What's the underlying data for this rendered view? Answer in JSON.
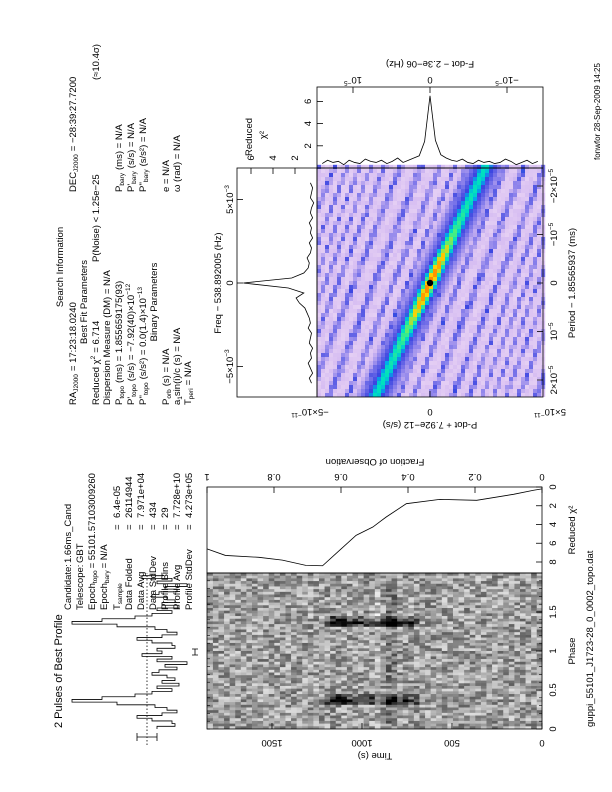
{
  "title": "2 Pulses of Best Profile",
  "footer": {
    "filename": "guppi_55101_J1723-28_0_0002_topo.dat",
    "timestamp": "fonwfor 28-Sep-2009 14:25"
  },
  "candidate": {
    "candidate_label": "Candidate:",
    "candidate_value": "1.66ms_Cand",
    "telescope_label": "Telescope:",
    "telescope_value": "GBT",
    "epoch_topo": {
      "label": "Epoch",
      "sub": "topo",
      "value": "= 55101.57103009260"
    },
    "epoch_bary": {
      "label": "Epoch",
      "sub": "bary",
      "value": "= N/A"
    },
    "rows": [
      {
        "label": "T",
        "sub": "sample",
        "value": "6.4e-05"
      },
      {
        "label": "Data Folded",
        "sub": "",
        "value": "26114944"
      },
      {
        "label": "Data Avg",
        "sub": "",
        "value": "7.971e+04"
      },
      {
        "label": "Data StdDev",
        "sub": "",
        "value": "434"
      },
      {
        "label": "Profile Bins",
        "sub": "",
        "value": "29"
      },
      {
        "label": "Profile Avg",
        "sub": "",
        "value": "7.728e+10"
      },
      {
        "label": "Profile StdDev",
        "sub": "",
        "value": "4.273e+05"
      }
    ],
    "eq": "="
  },
  "search": {
    "title": "Search Information",
    "ra": {
      "label": "RA",
      "sub": "J2000",
      "value": "= 17:23:18.0240"
    },
    "dec": {
      "label": "DEC",
      "sub": "J2000",
      "value": "= −28:39:27.7200"
    },
    "best_fit_title": "Best Fit Parameters",
    "reduced_chi2": {
      "label": "Reduced χ",
      "sup": "2",
      "value": "= 6.714"
    },
    "p_noise": "P(Noise) < 1.25e−25",
    "sigma": "(≈10.4σ)",
    "dm": "Dispersion Measure (DM) = N/A",
    "p_topo": {
      "label": "P",
      "sub": "topo",
      "value": "(ms) = 1.855659175(93)"
    },
    "pd_topo": {
      "label": "P'",
      "sub": "topo",
      "value": "(s/s) = −7.92(40)×10",
      "sup": "−12"
    },
    "pdd_topo": {
      "label": "P''",
      "sub": "topo",
      "value": "(s/s²) = 0.0(1.4)×10",
      "sup": "−13"
    },
    "p_bary": {
      "label": "P",
      "sub": "bary",
      "value": "(ms) = N/A"
    },
    "pd_bary": {
      "label": "P'",
      "sub": "bary",
      "value": "(s/s) = N/A"
    },
    "pdd_bary": {
      "label": "P''",
      "sub": "bary",
      "value": "(s/s²) = N/A"
    },
    "binary_title": "Binary Parameters",
    "p_orb": {
      "label": "P",
      "sub": "orb",
      "value": "(s) = N/A"
    },
    "a1": {
      "label": "a",
      "sub": "1",
      "value": "sin(i)/c (s) = N/A"
    },
    "t_peri": {
      "label": "T",
      "sub": "peri",
      "value": "= N/A"
    },
    "e": "e = N/A",
    "omega": "ω (rad) = N/A"
  },
  "chart_data": [
    {
      "type": "line",
      "title": "2 Pulses of Best Profile",
      "xlabel": "Phase",
      "xlim": [
        0,
        2
      ],
      "x_ticks": [
        "0",
        "0.5",
        "1",
        "1.5"
      ],
      "profile_bins": 29,
      "values": [
        -10,
        -28,
        -25,
        -5,
        10,
        -15,
        -30,
        -20,
        -8,
        30,
        75,
        45,
        12,
        -5,
        -25,
        -10,
        -32,
        -15,
        -28,
        -20,
        -5,
        -12,
        -30,
        -18,
        -40,
        -10,
        -25,
        5,
        -15
      ]
    },
    {
      "type": "heatmap",
      "xlabel": "Phase",
      "ylabel": "Time (s)",
      "xlim": [
        0,
        2
      ],
      "ylim": [
        0,
        1861
      ],
      "y_ticks": [
        "0",
        "500",
        "1000",
        "1500"
      ]
    },
    {
      "type": "line",
      "xlabel": "Reduced χ²",
      "ylabel": "Fraction of Observation",
      "x_ticks": [
        "0",
        "2",
        "4",
        "6",
        "8"
      ],
      "y_ticks": [
        "0",
        "0.2",
        "0.4",
        "0.6",
        "0.8",
        "1"
      ],
      "fraction": [
        0,
        0.025,
        0.085,
        0.195,
        0.305,
        0.405,
        0.465,
        0.505,
        0.555,
        0.615,
        0.655,
        0.705,
        0.775,
        0.845,
        0.945,
        1.0
      ],
      "chi2": [
        0.2,
        0.35,
        0.78,
        1.42,
        1.32,
        1.78,
        3.2,
        4.27,
        5.16,
        7.1,
        8.4,
        8.36,
        7.8,
        7.5,
        7.3,
        6.6
      ]
    },
    {
      "type": "line",
      "xlabel": "Freq − 538.892005 (Hz)",
      "ylabel": "Reduced",
      "ylabel2": "χ²",
      "x_unit": 0.001,
      "x_ticks": [
        {
          "v": -5,
          "label": "−5×10",
          "sup": "−3"
        },
        {
          "v": 0,
          "label": "0",
          "sup": ""
        },
        {
          "v": 5,
          "label": "5×10",
          "sup": "−3"
        }
      ],
      "y_ticks": [
        "2",
        "4",
        "6"
      ],
      "x_start": -6,
      "x_step": 0.3,
      "values": [
        0.5,
        0.7,
        0.4,
        0.6,
        0.8,
        0.5,
        0.6,
        0.4,
        0.7,
        0.6,
        0.5,
        0.8,
        0.6,
        0.7,
        0.9,
        1.1,
        1.6,
        1.9,
        1.2,
        2.6,
        6.7,
        2.3,
        1.2,
        0.8,
        0.7,
        0.9,
        0.6,
        0.5,
        0.7,
        0.4,
        0.6,
        0.5,
        0.7,
        0.4,
        0.6,
        0.5,
        0.3,
        0.6,
        0.5,
        0.4,
        0.6
      ]
    },
    {
      "type": "line",
      "xlabel": "F-dot − 2.3e−06 (Hz)",
      "x_unit": 1e-05,
      "x_ticks": [
        {
          "v": 1,
          "label": "10",
          "sup": "−5"
        },
        {
          "v": 0,
          "label": "0",
          "sup": ""
        },
        {
          "v": -1,
          "label": "−10",
          "sup": "−5"
        }
      ],
      "y_ticks": [
        "2",
        "4",
        "6"
      ],
      "x_start": -1.4,
      "x_step": 0.07,
      "values": [
        0.6,
        0.4,
        0.7,
        0.5,
        0.3,
        0.6,
        0.8,
        0.5,
        0.4,
        0.6,
        0.5,
        0.7,
        0.4,
        0.5,
        0.8,
        0.6,
        0.7,
        0.9,
        1.2,
        2.5,
        6.5,
        2.4,
        1.1,
        0.9,
        0.7,
        0.5,
        0.9,
        0.6,
        0.4,
        0.7,
        0.5,
        0.6,
        0.8,
        0.4,
        0.5,
        0.7,
        0.3,
        0.6,
        0.5,
        0.7,
        0.4
      ]
    },
    {
      "type": "heatmap",
      "xlabel": "Period − 1.85565937 (ms)",
      "ylabel": "P-dot + 7.92e−12 (s/s)",
      "x_ticks": [
        {
          "v": 2,
          "label": "2×10",
          "sup": "−5"
        },
        {
          "v": 1,
          "label": "10",
          "sup": "−5"
        },
        {
          "v": 0,
          "label": "0",
          "sup": ""
        },
        {
          "v": -1,
          "label": "−10",
          "sup": "−5"
        },
        {
          "v": -2,
          "label": "−2×10",
          "sup": "−5"
        }
      ],
      "y_ticks": [
        {
          "v": -5,
          "label": "−5×10",
          "sup": "−11"
        },
        {
          "v": 0,
          "label": "0",
          "sup": ""
        },
        {
          "v": 5,
          "label": "5×10",
          "sup": "−11"
        }
      ],
      "best": {
        "period": 0,
        "pdot": 0
      }
    }
  ],
  "colors": {
    "ridge_core": "#ff9900",
    "ridge": "#00e0b0",
    "background": "#f0dcf2",
    "streak": "#5050e0"
  }
}
